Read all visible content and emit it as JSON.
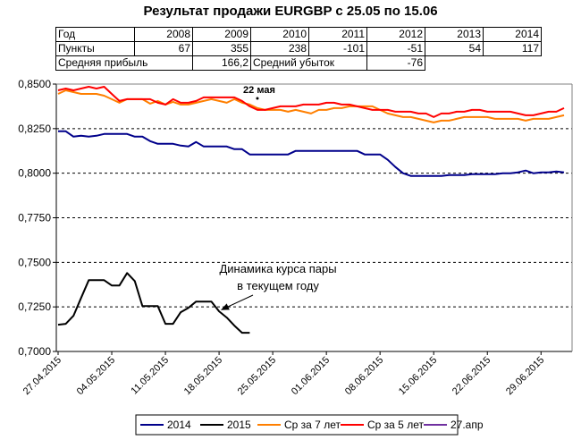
{
  "chart_data": {
    "type": "line",
    "title": "Результат продажи EURGBP с 25.05 по 15.06",
    "x_tick_labels": [
      "27.04.2015",
      "04.05.2015",
      "11.05.2015",
      "18.05.2015",
      "25.05.2015",
      "01.06.2015",
      "08.06.2015",
      "15.06.2015",
      "22.06.2015",
      "29.06.2015"
    ],
    "y_tick_labels": [
      "0,8500",
      "0,8250",
      "0,8000",
      "0,7750",
      "0,7500",
      "0,7250",
      "0,7000"
    ],
    "ylim": [
      0.7,
      0.85
    ],
    "x_range_days": [
      0,
      66
    ],
    "grid": "horizontal dashed",
    "legend_position": "bottom",
    "series": [
      {
        "name": "2014",
        "color": "#00008b",
        "x": [
          0,
          1,
          2,
          3,
          4,
          5,
          6,
          7,
          8,
          9,
          10,
          11,
          12,
          13,
          14,
          15,
          16,
          17,
          18,
          19,
          20,
          21,
          22,
          23,
          24,
          25,
          26,
          27,
          28,
          29,
          30,
          31,
          32,
          33,
          34,
          35,
          36,
          37,
          38,
          39,
          40,
          41,
          42,
          43,
          44,
          45,
          46,
          47,
          48,
          49,
          50,
          51,
          52,
          53,
          54,
          55,
          56,
          57,
          58,
          59,
          60,
          61,
          62,
          63,
          64,
          65,
          66
        ],
        "y": [
          0.8235,
          0.8235,
          0.8205,
          0.821,
          0.8205,
          0.821,
          0.822,
          0.822,
          0.822,
          0.822,
          0.8205,
          0.8205,
          0.818,
          0.8165,
          0.8165,
          0.8165,
          0.8155,
          0.815,
          0.8175,
          0.815,
          0.815,
          0.815,
          0.815,
          0.8135,
          0.8135,
          0.8105,
          0.8105,
          0.8105,
          0.8105,
          0.8105,
          0.8105,
          0.8125,
          0.8125,
          0.8125,
          0.8125,
          0.8125,
          0.8125,
          0.8125,
          0.8125,
          0.8125,
          0.8105,
          0.8105,
          0.8105,
          0.8075,
          0.8035,
          0.8,
          0.7985,
          0.7985,
          0.7985,
          0.7985,
          0.7985,
          0.799,
          0.799,
          0.799,
          0.7995,
          0.7995,
          0.7995,
          0.7995,
          0.8,
          0.8,
          0.8005,
          0.8015,
          0.8,
          0.8005,
          0.8005,
          0.801,
          0.8005
        ]
      },
      {
        "name": "2015",
        "color": "#000000",
        "x": [
          0,
          1,
          2,
          3,
          4,
          5,
          6,
          7,
          8,
          9,
          10,
          11,
          12,
          13,
          14,
          15,
          16,
          17,
          18,
          19,
          20,
          21,
          22,
          23,
          24,
          25
        ],
        "y": [
          0.715,
          0.7155,
          0.72,
          0.73,
          0.74,
          0.74,
          0.74,
          0.737,
          0.737,
          0.744,
          0.7395,
          0.7255,
          0.7255,
          0.7255,
          0.7155,
          0.7155,
          0.722,
          0.7245,
          0.728,
          0.728,
          0.728,
          0.7225,
          0.719,
          0.7145,
          0.7105,
          0.7105
        ]
      },
      {
        "name": "Ср за 7 лет",
        "color": "#ff7f00",
        "x": [
          0,
          1,
          2,
          3,
          4,
          5,
          6,
          7,
          8,
          9,
          10,
          11,
          12,
          13,
          14,
          15,
          16,
          17,
          18,
          19,
          20,
          21,
          22,
          23,
          24,
          25,
          26,
          27,
          28,
          29,
          30,
          31,
          32,
          33,
          34,
          35,
          36,
          37,
          38,
          39,
          40,
          41,
          42,
          43,
          44,
          45,
          46,
          47,
          48,
          49,
          50,
          51,
          52,
          53,
          54,
          55,
          56,
          57,
          58,
          59,
          60,
          61,
          62,
          63,
          64,
          65,
          66
        ],
        "y": [
          0.8445,
          0.8465,
          0.8455,
          0.8445,
          0.8445,
          0.8445,
          0.8435,
          0.8415,
          0.8395,
          0.8415,
          0.8415,
          0.8415,
          0.839,
          0.8405,
          0.8385,
          0.84,
          0.8385,
          0.8385,
          0.8395,
          0.8405,
          0.8415,
          0.8405,
          0.8395,
          0.8415,
          0.8395,
          0.8385,
          0.8365,
          0.8355,
          0.8355,
          0.8355,
          0.8345,
          0.8355,
          0.8345,
          0.8335,
          0.8355,
          0.8355,
          0.8365,
          0.8365,
          0.8375,
          0.8375,
          0.8375,
          0.8375,
          0.8355,
          0.8335,
          0.8325,
          0.8315,
          0.8315,
          0.8305,
          0.8295,
          0.8285,
          0.8295,
          0.8295,
          0.8305,
          0.8315,
          0.8315,
          0.8315,
          0.8315,
          0.8305,
          0.8305,
          0.8305,
          0.8305,
          0.8295,
          0.8305,
          0.8305,
          0.8305,
          0.8315,
          0.8325
        ]
      },
      {
        "name": "Ср за 5 лет",
        "color": "#ff0000",
        "x": [
          0,
          1,
          2,
          3,
          4,
          5,
          6,
          7,
          8,
          9,
          10,
          11,
          12,
          13,
          14,
          15,
          16,
          17,
          18,
          19,
          20,
          21,
          22,
          23,
          24,
          25,
          26,
          27,
          28,
          29,
          30,
          31,
          32,
          33,
          34,
          35,
          36,
          37,
          38,
          39,
          40,
          41,
          42,
          43,
          44,
          45,
          46,
          47,
          48,
          49,
          50,
          51,
          52,
          53,
          54,
          55,
          56,
          57,
          58,
          59,
          60,
          61,
          62,
          63,
          64,
          65,
          66
        ],
        "y": [
          0.8465,
          0.8475,
          0.8465,
          0.8475,
          0.8485,
          0.8475,
          0.8485,
          0.8445,
          0.8405,
          0.8415,
          0.8415,
          0.8415,
          0.8415,
          0.8395,
          0.8385,
          0.8415,
          0.8395,
          0.8395,
          0.8405,
          0.8425,
          0.8425,
          0.8425,
          0.8425,
          0.8425,
          0.8405,
          0.8375,
          0.8355,
          0.8355,
          0.8365,
          0.8375,
          0.8375,
          0.8375,
          0.8385,
          0.8385,
          0.8385,
          0.8395,
          0.8395,
          0.8385,
          0.8385,
          0.8375,
          0.8365,
          0.8355,
          0.8355,
          0.8355,
          0.8345,
          0.8345,
          0.8345,
          0.8335,
          0.8335,
          0.8315,
          0.8335,
          0.8335,
          0.8345,
          0.8345,
          0.8355,
          0.8355,
          0.8345,
          0.8345,
          0.8345,
          0.8345,
          0.8335,
          0.8325,
          0.8325,
          0.8335,
          0.8345,
          0.8345,
          0.8365
        ]
      },
      {
        "name": "27.апр",
        "color": "#7030a0",
        "x": [],
        "y": []
      }
    ],
    "annotations": {
      "peak_label": "22 мая",
      "peak_x": 26,
      "peak_y": 0.842,
      "note": "Динамика курса пары в текущем году",
      "note_line1": "Динамика курса пары",
      "note_line2": "в текущем году",
      "note_arrow_target": {
        "x": 21,
        "y": 0.7225
      }
    }
  },
  "stats_table": {
    "row_year": {
      "label": "Год",
      "values": [
        "2008",
        "2009",
        "2010",
        "2011",
        "2012",
        "2013",
        "2014"
      ]
    },
    "row_points": {
      "label": "Пункты",
      "values": [
        "67",
        "355",
        "238",
        "-101",
        "-51",
        "54",
        "117"
      ]
    },
    "avg_profit_label": "Средняя прибыль",
    "avg_profit_value": "166,2",
    "avg_loss_label": "Средний убыток",
    "avg_loss_value": "-76"
  },
  "legend": [
    "2014",
    "2015",
    "Ср за 7 лет",
    "Ср за 5 лет",
    "27.апр"
  ]
}
